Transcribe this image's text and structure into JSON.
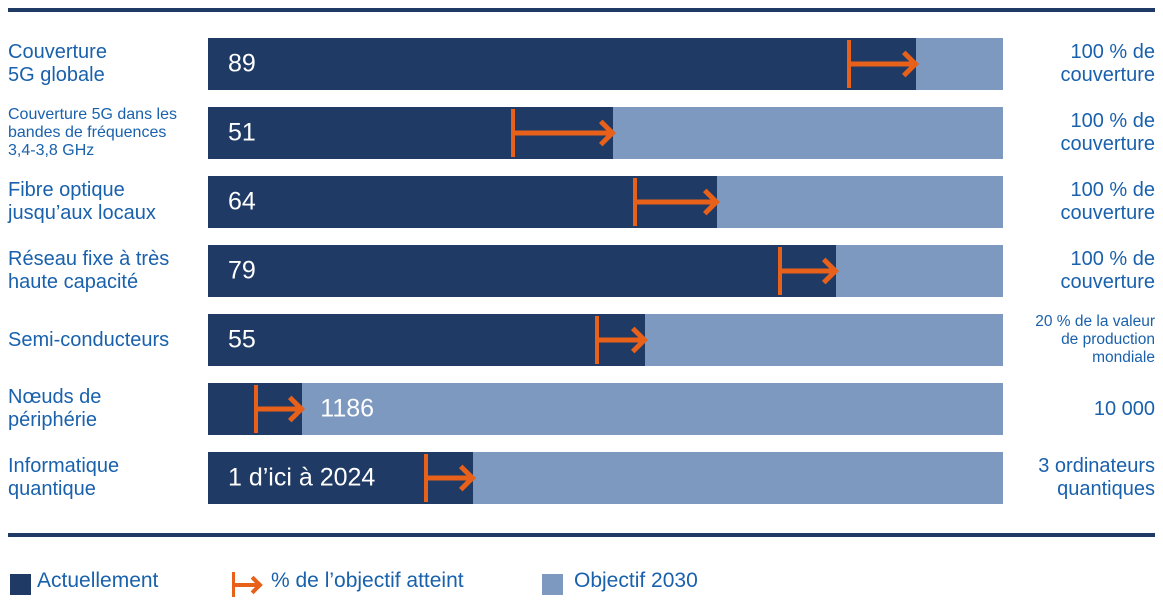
{
  "colors": {
    "navy": "#1F3A64",
    "light_blue": "#7D99BF",
    "orange": "#E8611A",
    "label_blue": "#1961AC",
    "value_text": "#FFFFFF"
  },
  "chart_data": {
    "type": "bar",
    "orientation": "horizontal",
    "axis": {
      "min_pct": 0,
      "max_pct": 100,
      "full_bar_meaning": "Objectif 2030 (100 %)"
    },
    "rows": [
      {
        "label": "Couverture\n5G globale",
        "current_value": "89",
        "pct_of_target": 89,
        "arrow_from_pct": 80.4,
        "target": "100 % de\ncouverture",
        "value_placement": "inside"
      },
      {
        "label": "Couverture 5G dans les\nbandes de fréquences\n3,4-3,8 GHz",
        "current_value": "51",
        "pct_of_target": 51,
        "arrow_from_pct": 38.1,
        "target": "100 % de\ncouverture",
        "value_placement": "inside"
      },
      {
        "label": "Fibre optique\njusqu’aux locaux",
        "current_value": "64",
        "pct_of_target": 64,
        "arrow_from_pct": 53.5,
        "target": "100 % de\ncouverture",
        "value_placement": "inside"
      },
      {
        "label": "Réseau fixe à très\nhaute capacité",
        "current_value": "79",
        "pct_of_target": 79,
        "arrow_from_pct": 71.7,
        "target": "100 % de\ncouverture",
        "value_placement": "inside"
      },
      {
        "label": "Semi-conducteurs",
        "current_value": "55",
        "pct_of_target": 55,
        "arrow_from_pct": 48.7,
        "target": "20 % de la valeur\nde production\nmondiale",
        "value_placement": "inside"
      },
      {
        "label": "Nœuds de\npériphérie",
        "current_value": "1186",
        "pct_of_target": 11.86,
        "arrow_from_pct": 5.8,
        "target": "10 000",
        "value_placement": "after"
      },
      {
        "label": "Informatique\nquantique",
        "current_value": "1 d’ici à 2024",
        "pct_of_target": 33.3,
        "arrow_from_pct": 27.2,
        "target": "3 ordinateurs\nquantiques",
        "value_placement": "inside"
      }
    ],
    "legend": [
      {
        "label": "Actuellement",
        "swatch": "navy"
      },
      {
        "label": "% de l’objectif atteint",
        "swatch": "orange-arrow"
      },
      {
        "label": "Objectif 2030",
        "swatch": "light_blue"
      }
    ]
  }
}
